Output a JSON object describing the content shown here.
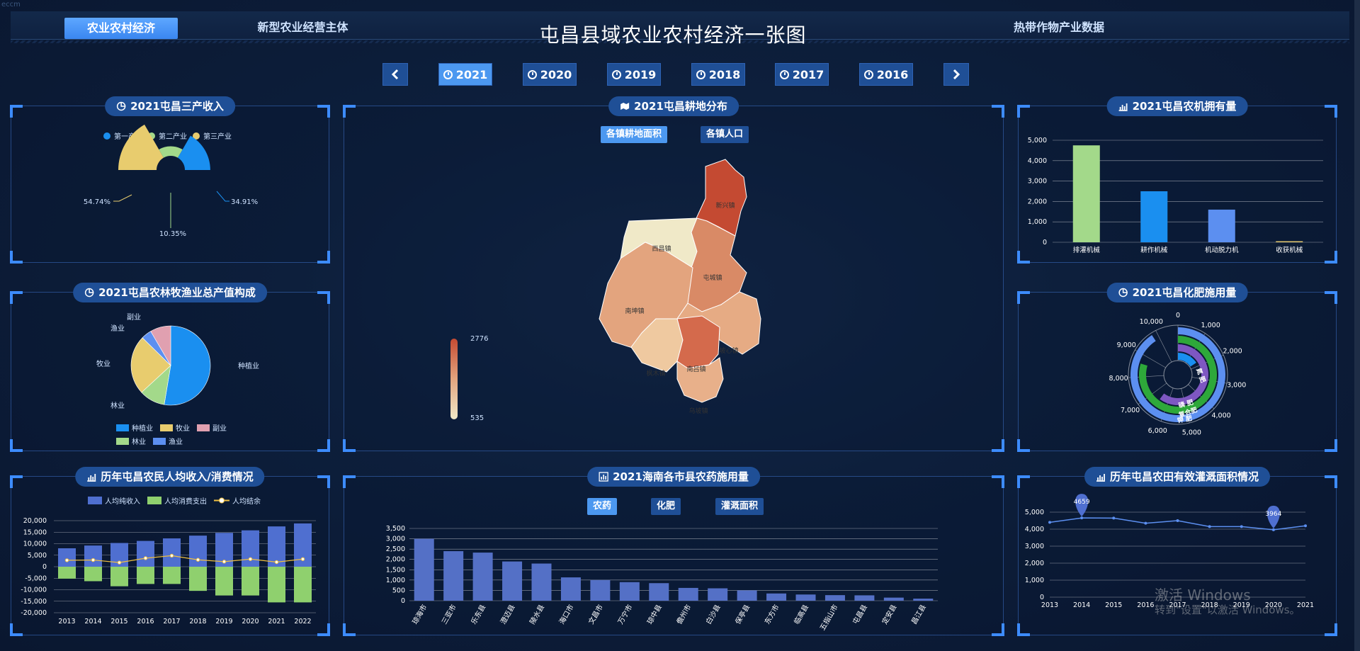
{
  "corner_text": "eccm",
  "header": {
    "title": "屯昌县域农业农村经济一张图",
    "nav": [
      "农业农村经济",
      "新型农业经营主体",
      "热带作物产业数据"
    ]
  },
  "years": [
    "2021",
    "2020",
    "2019",
    "2018",
    "2017",
    "2016"
  ],
  "selected_year": "2021",
  "panels": {
    "income": {
      "title": "2021屯昌三产收入",
      "legend": [
        "第一产业",
        "第二产业",
        "第三产业"
      ],
      "colors": [
        "#1a8ff0",
        "#a3d98a",
        "#e8cc6e"
      ],
      "labels": [
        "34.91%",
        "10.35%",
        "54.74%"
      ]
    },
    "agri_value": {
      "title": "2021屯昌农林牧渔业总产值构成",
      "labels": [
        "种植业",
        "林业",
        "牧业",
        "渔业",
        "副业"
      ],
      "legend": [
        "种植业",
        "牧业",
        "副业",
        "林业",
        "渔业"
      ]
    },
    "farmer_income": {
      "title": "历年屯昌农民人均收入/消费情况",
      "legend": [
        "人均纯收入",
        "人均消费支出",
        "人均结余"
      ]
    },
    "farmland": {
      "title": "2021屯昌耕地分布",
      "tabs": [
        "各镇耕地面积",
        "各镇人口"
      ],
      "towns": [
        "新兴镇",
        "西昌镇",
        "屯城镇",
        "南坤镇",
        "坡心镇",
        "枫木镇",
        "南吕镇",
        "乌坡镇"
      ],
      "visual_max": "2776",
      "visual_min": "535"
    },
    "pesticide": {
      "title": "2021海南各市县农药施用量",
      "tabs": [
        "农药",
        "化肥",
        "灌溉面积"
      ]
    },
    "machinery": {
      "title": "2021屯昌农机拥有量"
    },
    "fertilizer": {
      "title": "2021屯昌化肥施用量",
      "bands": [
        "氮 肥",
        "磷 肥",
        "复合肥",
        "钾 肥"
      ],
      "ticks": [
        "0",
        "1,000",
        "2,000",
        "3,000",
        "4,000",
        "5,000",
        "6,000",
        "7,000",
        "8,000",
        "9,000",
        "10,000"
      ]
    },
    "irrigation": {
      "title": "历年屯昌农田有效灌溉面积情况",
      "max_label": "4659",
      "min_label": "3964"
    }
  },
  "watermark": {
    "line1": "激活 Windows",
    "line2": "转到\"设置\"以激活 Windows。"
  },
  "chart_data": [
    {
      "type": "pie",
      "title": "2021屯昌三产收入",
      "categories": [
        "第一产业",
        "第二产业",
        "第三产业"
      ],
      "values": [
        34.91,
        10.35,
        54.74
      ]
    },
    {
      "type": "pie",
      "title": "2021屯昌农林牧渔业总产值构成",
      "categories": [
        "种植业",
        "林业",
        "牧业",
        "渔业",
        "副业"
      ],
      "values": [
        50,
        10,
        23,
        4,
        8
      ]
    },
    {
      "type": "bar",
      "title": "历年屯昌农民人均收入/消费情况",
      "categories": [
        "2013",
        "2014",
        "2015",
        "2016",
        "2017",
        "2018",
        "2019",
        "2020",
        "2021",
        "2022"
      ],
      "series": [
        {
          "name": "人均纯收入",
          "values": [
            8000,
            9200,
            10300,
            11200,
            12300,
            13500,
            14700,
            15800,
            17500,
            18800
          ]
        },
        {
          "name": "人均消费支出",
          "values": [
            -5200,
            -6300,
            -8500,
            -7500,
            -7500,
            -10500,
            -12500,
            -12500,
            -15500,
            -15500
          ]
        },
        {
          "name": "人均结余",
          "values": [
            2800,
            2900,
            1800,
            3700,
            4800,
            3000,
            2200,
            3300,
            2000,
            3300
          ]
        }
      ],
      "ylim": [
        -20000,
        20000
      ],
      "yticks": [
        "20,000",
        "15,000",
        "10,000",
        "5,000",
        "0",
        "-5,000",
        "-10,000",
        "-15,000",
        "-20,000"
      ]
    },
    {
      "type": "bar",
      "title": "2021海南各市县农药施用量",
      "categories": [
        "琼海市",
        "三亚市",
        "乐东县",
        "澄迈县",
        "陵水县",
        "海口市",
        "文昌市",
        "万宁市",
        "琼中县",
        "儋州市",
        "白沙县",
        "保亭县",
        "东方市",
        "临高县",
        "五指山市",
        "屯昌县",
        "定安县",
        "昌江县"
      ],
      "values": [
        3000,
        2400,
        2330,
        1900,
        1800,
        1130,
        1000,
        900,
        850,
        620,
        600,
        500,
        350,
        300,
        270,
        260,
        150,
        100
      ],
      "ylim": [
        0,
        3500
      ],
      "yticks": [
        "3,500",
        "3,000",
        "2,500",
        "2,000",
        "1,500",
        "1,000",
        "500",
        "0"
      ]
    },
    {
      "type": "bar",
      "title": "2021屯昌农机拥有量",
      "categories": [
        "排灌机械",
        "耕作机械",
        "机动脱力机",
        "收获机械"
      ],
      "values": [
        4750,
        2500,
        1600,
        50
      ],
      "colors": [
        "#a3d98a",
        "#1a8ff0",
        "#5c8ff0",
        "#e8cc6e"
      ],
      "ylim": [
        0,
        5000
      ],
      "yticks": [
        "5,000",
        "4,000",
        "3,000",
        "2,000",
        "1,000",
        "0"
      ]
    },
    {
      "type": "bar",
      "title": "2021屯昌化肥施用量",
      "categories": [
        "氮 肥",
        "磷 肥",
        "复合肥",
        "钾 肥"
      ],
      "values": [
        1700,
        6500,
        8600,
        9800
      ]
    },
    {
      "type": "line",
      "title": "历年屯昌农田有效灌溉面积情况",
      "x": [
        "2013",
        "2014",
        "2015",
        "2016",
        "2017",
        "2018",
        "2019",
        "2020",
        "2021"
      ],
      "values": [
        4400,
        4659,
        4650,
        4350,
        4500,
        4150,
        4150,
        3964,
        4200
      ],
      "ylim": [
        0,
        5000
      ],
      "yticks": [
        "5,000",
        "4,000",
        "3,000",
        "2,000",
        "1,000",
        "0"
      ]
    }
  ]
}
